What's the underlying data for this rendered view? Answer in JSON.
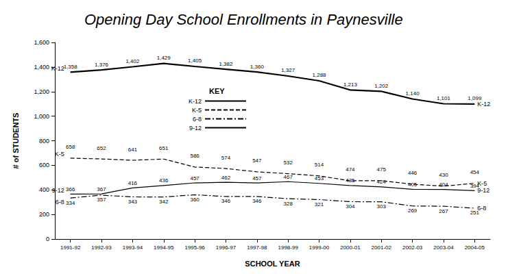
{
  "chart_data": {
    "type": "line",
    "title": "Opening Day School Enrollments in Paynesville",
    "x_label": "SCHOOL YEAR",
    "y_label": "# of STUDENTS",
    "annotations": [
      "KEY"
    ],
    "categories": [
      "1991-92",
      "1992-93",
      "1993-94",
      "1994-95",
      "1995-96",
      "1996-97",
      "1997-98",
      "1998-99",
      "1999-00",
      "2000-01",
      "2001-02",
      "2002-03",
      "2003-04",
      "2004-05"
    ],
    "series": [
      {
        "name": "K-12",
        "color": "#000000",
        "line_style": "solid",
        "values": [
          1358,
          1376,
          1402,
          1429,
          1405,
          1382,
          1360,
          1327,
          1288,
          1213,
          1202,
          1140,
          1101,
          1099
        ],
        "value_labels": [
          "1,358",
          "1,376",
          "1,402",
          "1,429",
          "1,405",
          "1,382",
          "1,360",
          "1,327",
          "1,288",
          "1,213",
          "1,202",
          "1,140",
          "1,101",
          "1,099"
        ]
      },
      {
        "name": "K-5",
        "color": "#000000",
        "line_style": "dashed",
        "values": [
          658,
          652,
          641,
          651,
          586,
          574,
          547,
          532,
          514,
          474,
          475,
          446,
          430,
          454
        ]
      },
      {
        "name": "6-8",
        "color": "#000000",
        "line_style": "dashdot",
        "values": [
          334,
          357,
          343,
          342,
          360,
          346,
          346,
          328,
          321,
          304,
          303,
          269,
          267,
          251
        ]
      },
      {
        "name": "9-12",
        "color": "#000000",
        "line_style": "solid",
        "values": [
          366,
          367,
          416,
          436,
          457,
          462,
          457,
          467,
          453,
          435,
          424,
          405,
          404,
          394
        ]
      }
    ],
    "ylim": [
      0,
      1600
    ],
    "yticks": [
      0,
      200,
      400,
      600,
      800,
      {
        "value": 1000,
        "label": "1,000"
      },
      {
        "value": 1200,
        "label": "1,200"
      },
      {
        "value": 1400,
        "label": "1,400"
      },
      {
        "value": 1600,
        "label": "1,600"
      }
    ],
    "grid": false,
    "legend": "center",
    "data_labels": true
  }
}
